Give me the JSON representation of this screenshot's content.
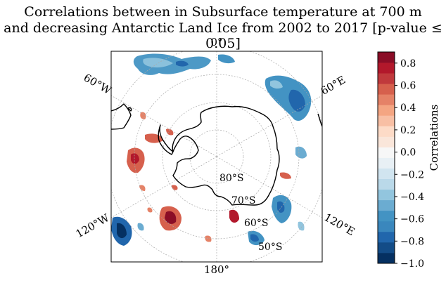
{
  "title_line1": "Correlations between in Subsurface temperature at 700 m",
  "title_line2": "and decreasing Antarctic Land Ice from 2002 to 2017 [p-value ≤ 0.05]",
  "map": {
    "projection": "south-polar stereographic",
    "lon_labels": [
      "0°",
      "60°E",
      "120°E",
      "180°",
      "120°W",
      "60°W"
    ],
    "lat_labels": [
      "80°S",
      "70°S",
      "60°S",
      "50°S"
    ]
  },
  "colorbar": {
    "label": "Correlations",
    "ticks": [
      "0.8",
      "0.6",
      "0.4",
      "0.2",
      "0.0",
      "−0.2",
      "−0.4",
      "−0.6",
      "−0.8",
      "−1.0"
    ],
    "min": -1.0,
    "max": 0.9,
    "colors": [
      "#053061",
      "#134c87",
      "#2166ac",
      "#3a87bd",
      "#4393c3",
      "#6bacd1",
      "#92c5de",
      "#bad9e9",
      "#d1e5f0",
      "#e8f0f5",
      "#f7f7f7",
      "#fae6da",
      "#fddbc7",
      "#f8bfa4",
      "#f4a582",
      "#e58267",
      "#d6604d",
      "#c0393c",
      "#b2182b",
      "#8a0d26"
    ]
  }
}
